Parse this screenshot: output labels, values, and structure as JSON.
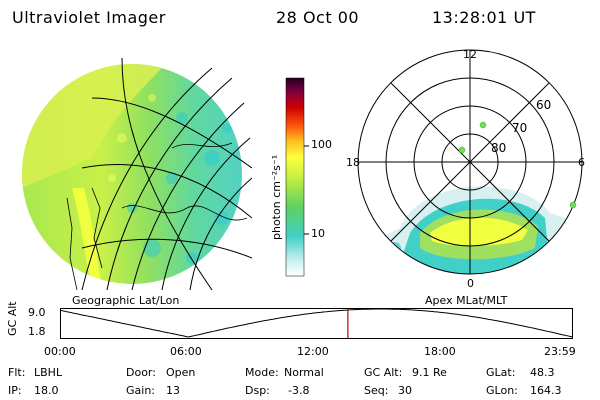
{
  "header": {
    "title": "Ultraviolet Imager",
    "date": "28 Oct 00",
    "time": "13:28:01 UT"
  },
  "colorbar": {
    "unit_label": "photon cm⁻²s⁻¹",
    "ticks": [
      "100",
      "10"
    ]
  },
  "left_panel": {
    "caption": "Geographic Lat/Lon"
  },
  "right_panel": {
    "caption": "Apex MLat/MLT",
    "mlt_labels": [
      "12",
      "18",
      "6",
      "0"
    ],
    "lat_labels": [
      "60",
      "70",
      "80"
    ]
  },
  "timeline": {
    "ylabel": "GC Alt",
    "yticks": [
      "9.0",
      "1.8"
    ],
    "xticks": [
      "00:00",
      "06:00",
      "12:00",
      "18:00",
      "23:59"
    ],
    "marker_time_hours": 13.47
  },
  "status": {
    "flt_label": "Flt:",
    "flt_value": "LBHL",
    "ip_label": "IP:",
    "ip_value": "18.0",
    "door_label": "Door:",
    "door_value": "Open",
    "gain_label": "Gain:",
    "gain_value": "13",
    "mode_label": "Mode:",
    "mode_value": "Normal",
    "dsp_label": "Dsp:",
    "dsp_value": "-3.8",
    "gcalt_label": "GC Alt:",
    "gcalt_value": "9.1 Re",
    "seq_label": "Seq:",
    "seq_value": "30",
    "glat_label": "GLat:",
    "glat_value": "48.3",
    "glon_label": "GLon:",
    "glon_value": "164.3"
  },
  "colors": {
    "aurora_bright": "#f0ff40",
    "aurora_mid": "#a0e040",
    "aurora_low": "#40d0c0",
    "marker": "#cc0000"
  }
}
